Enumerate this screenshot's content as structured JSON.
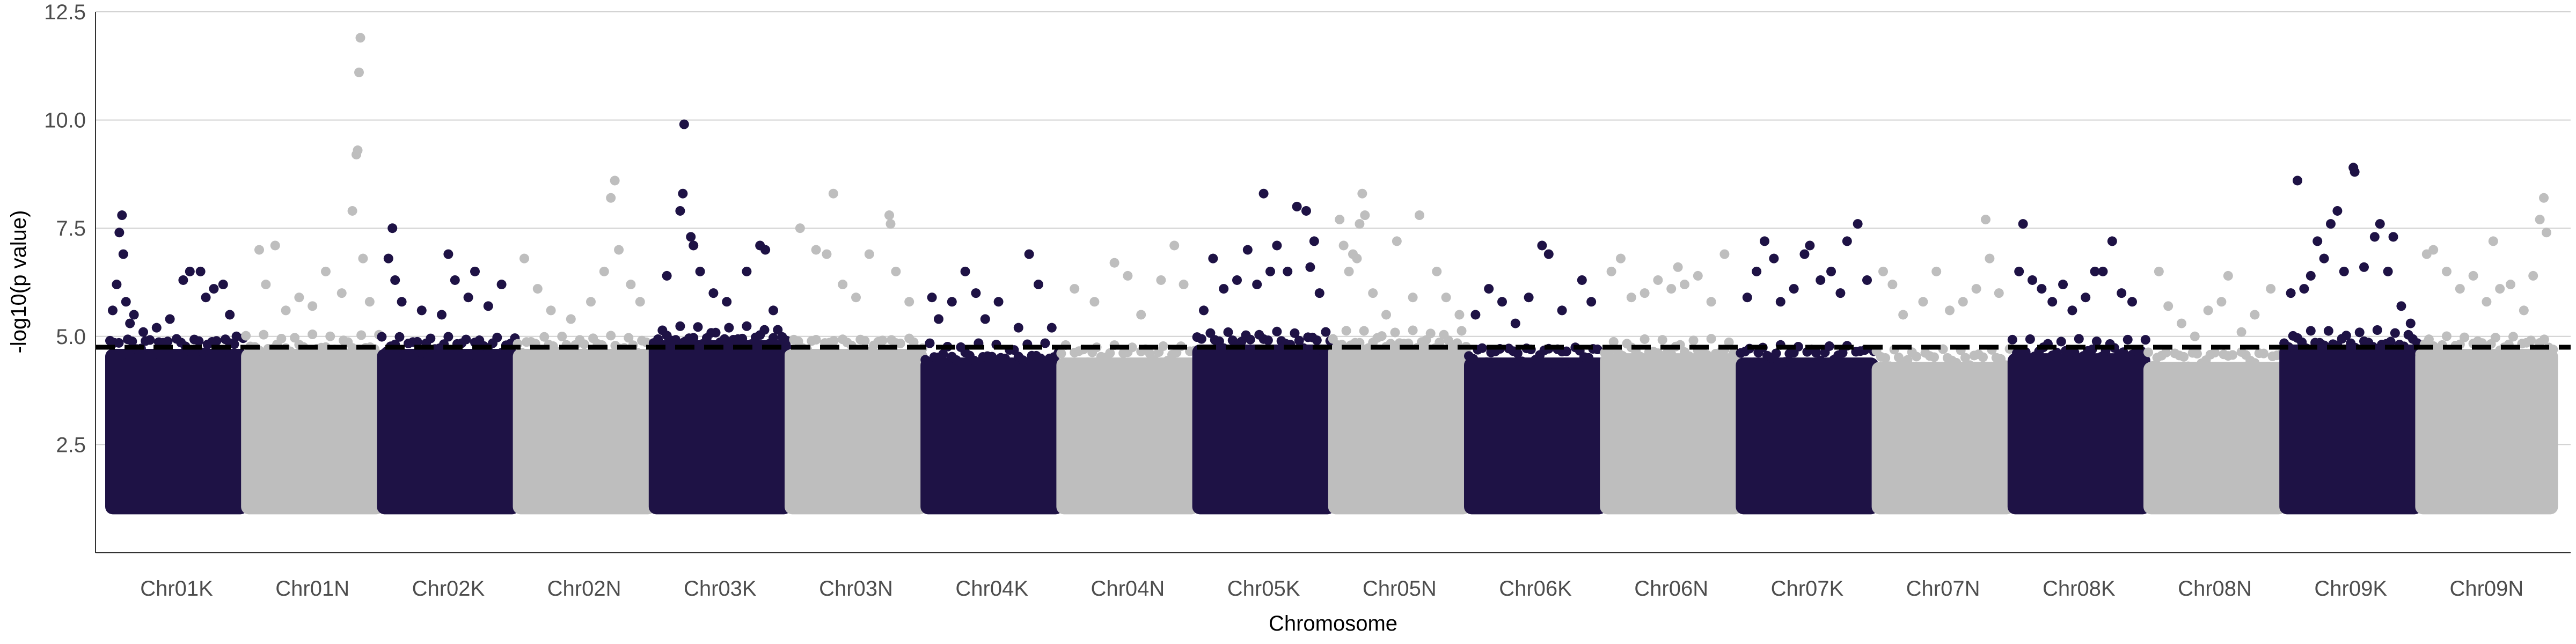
{
  "chart_data": {
    "type": "scatter",
    "xlabel": "Chromosome",
    "ylabel": "-log10(p value)",
    "ylim": [
      0,
      12.5
    ],
    "y_ticks": [
      2.5,
      5.0,
      7.5,
      10.0,
      12.5
    ],
    "y_tick_labels": [
      "2.5",
      "5.0",
      "7.5",
      "10.0",
      "12.5"
    ],
    "grid": "horizontal-major",
    "threshold": 4.75,
    "colors": {
      "K": "#1e1245",
      "N": "#bebebe",
      "threshold": "#000000",
      "grid": "#d0d0d0"
    },
    "categories": [
      "Chr01K",
      "Chr01N",
      "Chr02K",
      "Chr02N",
      "Chr03K",
      "Chr03N",
      "Chr04K",
      "Chr04N",
      "Chr05K",
      "Chr05N",
      "Chr06K",
      "Chr06N",
      "Chr07K",
      "Chr07N",
      "Chr08K",
      "Chr08N",
      "Chr09K",
      "Chr09N"
    ],
    "series": [
      {
        "chromosome": "Chr01K",
        "bulk_top": 4.6,
        "points": [
          [
            0.02,
            5.6
          ],
          [
            0.05,
            6.2
          ],
          [
            0.07,
            7.4
          ],
          [
            0.09,
            7.8
          ],
          [
            0.1,
            6.9
          ],
          [
            0.12,
            5.8
          ],
          [
            0.15,
            5.3
          ],
          [
            0.18,
            5.5
          ],
          [
            0.25,
            5.1
          ],
          [
            0.35,
            5.2
          ],
          [
            0.45,
            5.4
          ],
          [
            0.55,
            6.3
          ],
          [
            0.6,
            6.5
          ],
          [
            0.68,
            6.5
          ],
          [
            0.72,
            5.9
          ],
          [
            0.78,
            6.1
          ],
          [
            0.85,
            6.2
          ],
          [
            0.9,
            5.5
          ],
          [
            0.95,
            5.0
          ]
        ]
      },
      {
        "chromosome": "Chr01N",
        "bulk_top": 4.6,
        "points": [
          [
            0.1,
            7.0
          ],
          [
            0.15,
            6.2
          ],
          [
            0.22,
            7.1
          ],
          [
            0.3,
            5.6
          ],
          [
            0.4,
            5.9
          ],
          [
            0.5,
            5.7
          ],
          [
            0.6,
            6.5
          ],
          [
            0.72,
            6.0
          ],
          [
            0.8,
            7.9
          ],
          [
            0.84,
            9.3
          ],
          [
            0.85,
            11.1
          ],
          [
            0.86,
            11.9
          ],
          [
            0.83,
            9.2
          ],
          [
            0.88,
            6.8
          ],
          [
            0.93,
            5.8
          ]
        ]
      },
      {
        "chromosome": "Chr02K",
        "bulk_top": 4.6,
        "points": [
          [
            0.05,
            6.8
          ],
          [
            0.08,
            7.5
          ],
          [
            0.1,
            6.3
          ],
          [
            0.15,
            5.8
          ],
          [
            0.3,
            5.6
          ],
          [
            0.45,
            5.5
          ],
          [
            0.5,
            6.9
          ],
          [
            0.55,
            6.3
          ],
          [
            0.65,
            5.9
          ],
          [
            0.7,
            6.5
          ],
          [
            0.8,
            5.7
          ],
          [
            0.9,
            6.2
          ]
        ]
      },
      {
        "chromosome": "Chr02N",
        "bulk_top": 4.6,
        "points": [
          [
            0.05,
            6.8
          ],
          [
            0.15,
            6.1
          ],
          [
            0.25,
            5.6
          ],
          [
            0.4,
            5.4
          ],
          [
            0.55,
            5.8
          ],
          [
            0.65,
            6.5
          ],
          [
            0.7,
            8.2
          ],
          [
            0.73,
            8.6
          ],
          [
            0.76,
            7.0
          ],
          [
            0.85,
            6.2
          ],
          [
            0.92,
            5.8
          ]
        ]
      },
      {
        "chromosome": "Chr03K",
        "bulk_top": 4.8,
        "points": [
          [
            0.1,
            6.4
          ],
          [
            0.2,
            7.9
          ],
          [
            0.22,
            8.3
          ],
          [
            0.23,
            9.9
          ],
          [
            0.28,
            7.3
          ],
          [
            0.3,
            7.1
          ],
          [
            0.35,
            6.5
          ],
          [
            0.45,
            6.0
          ],
          [
            0.55,
            5.8
          ],
          [
            0.7,
            6.5
          ],
          [
            0.8,
            7.1
          ],
          [
            0.84,
            7.0
          ],
          [
            0.9,
            5.6
          ]
        ]
      },
      {
        "chromosome": "Chr03N",
        "bulk_top": 4.6,
        "points": [
          [
            0.08,
            7.5
          ],
          [
            0.2,
            7.0
          ],
          [
            0.28,
            6.9
          ],
          [
            0.33,
            8.3
          ],
          [
            0.4,
            6.2
          ],
          [
            0.5,
            5.9
          ],
          [
            0.6,
            6.9
          ],
          [
            0.75,
            7.8
          ],
          [
            0.76,
            7.6
          ],
          [
            0.8,
            6.5
          ],
          [
            0.9,
            5.8
          ]
        ]
      },
      {
        "chromosome": "Chr04K",
        "bulk_top": 4.4,
        "points": [
          [
            0.05,
            5.9
          ],
          [
            0.1,
            5.4
          ],
          [
            0.2,
            5.8
          ],
          [
            0.3,
            6.5
          ],
          [
            0.38,
            6.0
          ],
          [
            0.45,
            5.4
          ],
          [
            0.55,
            5.8
          ],
          [
            0.7,
            5.2
          ],
          [
            0.78,
            6.9
          ],
          [
            0.85,
            6.2
          ],
          [
            0.95,
            5.2
          ]
        ]
      },
      {
        "chromosome": "Chr04N",
        "bulk_top": 4.4,
        "points": [
          [
            0.1,
            6.1
          ],
          [
            0.25,
            5.8
          ],
          [
            0.4,
            6.7
          ],
          [
            0.5,
            6.4
          ],
          [
            0.6,
            5.5
          ],
          [
            0.75,
            6.3
          ],
          [
            0.85,
            7.1
          ],
          [
            0.92,
            6.2
          ]
        ]
      },
      {
        "chromosome": "Chr05K",
        "bulk_top": 4.7,
        "points": [
          [
            0.05,
            5.6
          ],
          [
            0.12,
            6.8
          ],
          [
            0.2,
            6.1
          ],
          [
            0.3,
            6.3
          ],
          [
            0.38,
            7.0
          ],
          [
            0.45,
            6.2
          ],
          [
            0.5,
            8.3
          ],
          [
            0.55,
            6.5
          ],
          [
            0.6,
            7.1
          ],
          [
            0.68,
            6.5
          ],
          [
            0.75,
            8.0
          ],
          [
            0.82,
            7.9
          ],
          [
            0.85,
            6.6
          ],
          [
            0.88,
            7.2
          ],
          [
            0.92,
            6.0
          ]
        ]
      },
      {
        "chromosome": "Chr05N",
        "bulk_top": 4.7,
        "points": [
          [
            0.05,
            7.7
          ],
          [
            0.08,
            7.1
          ],
          [
            0.12,
            6.5
          ],
          [
            0.15,
            6.9
          ],
          [
            0.18,
            6.8
          ],
          [
            0.2,
            7.6
          ],
          [
            0.22,
            8.3
          ],
          [
            0.24,
            7.8
          ],
          [
            0.3,
            6.0
          ],
          [
            0.4,
            5.5
          ],
          [
            0.48,
            7.2
          ],
          [
            0.6,
            5.9
          ],
          [
            0.65,
            7.8
          ],
          [
            0.78,
            6.5
          ],
          [
            0.85,
            5.9
          ],
          [
            0.95,
            5.5
          ]
        ]
      },
      {
        "chromosome": "Chr06K",
        "bulk_top": 4.4,
        "points": [
          [
            0.05,
            5.5
          ],
          [
            0.15,
            6.1
          ],
          [
            0.25,
            5.8
          ],
          [
            0.35,
            5.3
          ],
          [
            0.45,
            5.9
          ],
          [
            0.55,
            7.1
          ],
          [
            0.6,
            6.9
          ],
          [
            0.7,
            5.6
          ],
          [
            0.85,
            6.3
          ],
          [
            0.92,
            5.8
          ]
        ]
      },
      {
        "chromosome": "Chr06N",
        "bulk_top": 4.5,
        "points": [
          [
            0.05,
            6.5
          ],
          [
            0.12,
            6.8
          ],
          [
            0.2,
            5.9
          ],
          [
            0.3,
            6.0
          ],
          [
            0.4,
            6.3
          ],
          [
            0.5,
            6.1
          ],
          [
            0.55,
            6.6
          ],
          [
            0.6,
            6.2
          ],
          [
            0.7,
            6.4
          ],
          [
            0.8,
            5.8
          ],
          [
            0.9,
            6.9
          ]
        ]
      },
      {
        "chromosome": "Chr07K",
        "bulk_top": 4.4,
        "points": [
          [
            0.05,
            5.9
          ],
          [
            0.12,
            6.5
          ],
          [
            0.18,
            7.2
          ],
          [
            0.25,
            6.8
          ],
          [
            0.3,
            5.8
          ],
          [
            0.4,
            6.1
          ],
          [
            0.48,
            6.9
          ],
          [
            0.52,
            7.1
          ],
          [
            0.6,
            6.3
          ],
          [
            0.68,
            6.5
          ],
          [
            0.75,
            6.0
          ],
          [
            0.8,
            7.2
          ],
          [
            0.88,
            7.6
          ],
          [
            0.95,
            6.3
          ]
        ]
      },
      {
        "chromosome": "Chr07N",
        "bulk_top": 4.3,
        "points": [
          [
            0.05,
            6.5
          ],
          [
            0.12,
            6.2
          ],
          [
            0.2,
            5.5
          ],
          [
            0.35,
            5.8
          ],
          [
            0.45,
            6.5
          ],
          [
            0.55,
            5.6
          ],
          [
            0.65,
            5.8
          ],
          [
            0.75,
            6.1
          ],
          [
            0.82,
            7.7
          ],
          [
            0.85,
            6.8
          ],
          [
            0.92,
            6.0
          ]
        ]
      },
      {
        "chromosome": "Chr08K",
        "bulk_top": 4.5,
        "points": [
          [
            0.05,
            6.5
          ],
          [
            0.08,
            7.6
          ],
          [
            0.15,
            6.3
          ],
          [
            0.22,
            6.1
          ],
          [
            0.3,
            5.8
          ],
          [
            0.38,
            6.2
          ],
          [
            0.45,
            5.6
          ],
          [
            0.55,
            5.9
          ],
          [
            0.62,
            6.5
          ],
          [
            0.68,
            6.5
          ],
          [
            0.75,
            7.2
          ],
          [
            0.82,
            6.0
          ],
          [
            0.9,
            5.8
          ]
        ]
      },
      {
        "chromosome": "Chr08N",
        "bulk_top": 4.3,
        "points": [
          [
            0.08,
            6.5
          ],
          [
            0.15,
            5.7
          ],
          [
            0.25,
            5.3
          ],
          [
            0.35,
            5.0
          ],
          [
            0.45,
            5.6
          ],
          [
            0.55,
            5.8
          ],
          [
            0.6,
            6.4
          ],
          [
            0.7,
            5.1
          ],
          [
            0.8,
            5.5
          ],
          [
            0.92,
            6.1
          ]
        ]
      },
      {
        "chromosome": "Chr09K",
        "bulk_top": 4.7,
        "points": [
          [
            0.05,
            6.0
          ],
          [
            0.1,
            8.6
          ],
          [
            0.15,
            6.1
          ],
          [
            0.2,
            6.4
          ],
          [
            0.25,
            7.2
          ],
          [
            0.3,
            6.8
          ],
          [
            0.35,
            7.6
          ],
          [
            0.4,
            7.9
          ],
          [
            0.45,
            6.5
          ],
          [
            0.52,
            8.9
          ],
          [
            0.53,
            8.8
          ],
          [
            0.6,
            6.6
          ],
          [
            0.68,
            7.3
          ],
          [
            0.72,
            7.6
          ],
          [
            0.78,
            6.5
          ],
          [
            0.82,
            7.3
          ],
          [
            0.88,
            5.7
          ],
          [
            0.95,
            5.3
          ]
        ]
      },
      {
        "chromosome": "Chr09N",
        "bulk_top": 4.6,
        "points": [
          [
            0.05,
            6.9
          ],
          [
            0.1,
            7.0
          ],
          [
            0.2,
            6.5
          ],
          [
            0.3,
            6.1
          ],
          [
            0.4,
            6.4
          ],
          [
            0.5,
            5.8
          ],
          [
            0.55,
            7.2
          ],
          [
            0.6,
            6.1
          ],
          [
            0.68,
            6.2
          ],
          [
            0.78,
            5.6
          ],
          [
            0.85,
            6.4
          ],
          [
            0.9,
            7.7
          ],
          [
            0.93,
            8.2
          ],
          [
            0.95,
            7.4
          ]
        ]
      }
    ]
  }
}
